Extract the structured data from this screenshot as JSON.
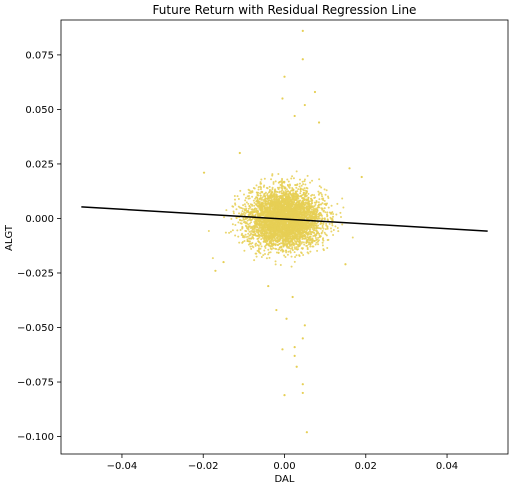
{
  "chart_data": {
    "type": "scatter",
    "title": "Future Return with Residual Regression Line",
    "xlabel": "DAL",
    "ylabel": "ALGT",
    "xlim": [
      -0.055,
      0.055
    ],
    "ylim": [
      -0.108,
      0.091
    ],
    "xticks": [
      -0.04,
      -0.02,
      0.0,
      0.02,
      0.04
    ],
    "xtick_labels": [
      "−0.04",
      "−0.02",
      "0.00",
      "0.02",
      "0.04"
    ],
    "yticks": [
      0.075,
      0.05,
      0.025,
      0.0,
      -0.025,
      -0.05,
      -0.075,
      -0.1
    ],
    "ytick_labels": [
      "0.075",
      "0.050",
      "0.025",
      "0.000",
      "−0.025",
      "−0.050",
      "−0.075",
      "−0.100"
    ],
    "grid": false,
    "colors": {
      "points": "#e6cf55",
      "line": "#000000",
      "frame": "#000000"
    },
    "regression_line": {
      "x": [
        -0.05,
        0.05
      ],
      "y": [
        0.0053,
        -0.0058
      ]
    },
    "scatter_cluster": {
      "x_mean": 0.0,
      "y_mean": 0.0,
      "x_std": 0.0045,
      "y_std": 0.0065,
      "approx_points": 4500
    },
    "points": [
      {
        "x": 0.0045,
        "y": 0.086
      },
      {
        "x": 0.0045,
        "y": 0.073
      },
      {
        "x": 0.0,
        "y": 0.065
      },
      {
        "x": -0.0005,
        "y": 0.055
      },
      {
        "x": 0.0075,
        "y": 0.058
      },
      {
        "x": 0.0025,
        "y": 0.047
      },
      {
        "x": 0.0085,
        "y": 0.044
      },
      {
        "x": 0.005,
        "y": 0.052
      },
      {
        "x": -0.0198,
        "y": 0.021
      },
      {
        "x": -0.011,
        "y": 0.03
      },
      {
        "x": 0.016,
        "y": 0.023
      },
      {
        "x": 0.019,
        "y": 0.019
      },
      {
        "x": -0.017,
        "y": -0.024
      },
      {
        "x": -0.015,
        "y": -0.02
      },
      {
        "x": 0.015,
        "y": -0.021
      },
      {
        "x": -0.004,
        "y": -0.031
      },
      {
        "x": 0.002,
        "y": -0.036
      },
      {
        "x": -0.002,
        "y": -0.042
      },
      {
        "x": 0.0005,
        "y": -0.046
      },
      {
        "x": 0.005,
        "y": -0.049
      },
      {
        "x": 0.0045,
        "y": -0.055
      },
      {
        "x": -0.0005,
        "y": -0.06
      },
      {
        "x": 0.0025,
        "y": -0.059
      },
      {
        "x": 0.0025,
        "y": -0.063
      },
      {
        "x": 0.003,
        "y": -0.068
      },
      {
        "x": 0.0045,
        "y": -0.076
      },
      {
        "x": 0.0045,
        "y": -0.08
      },
      {
        "x": 0.0,
        "y": -0.081
      },
      {
        "x": 0.0055,
        "y": -0.098
      }
    ]
  }
}
